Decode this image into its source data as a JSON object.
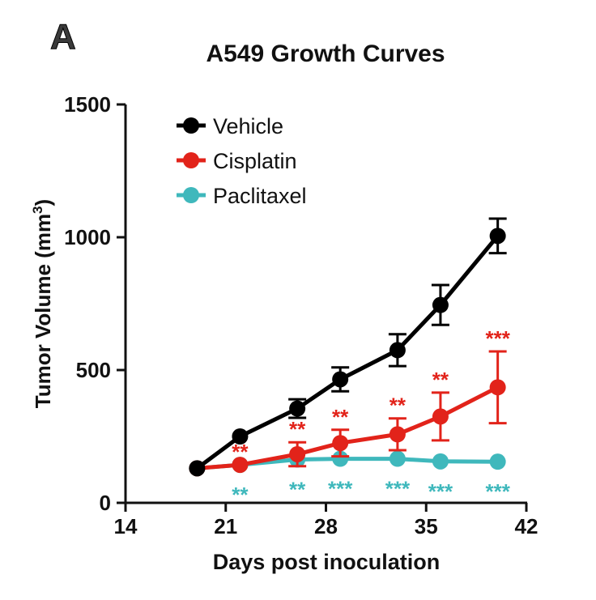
{
  "panel_label": "A",
  "chart_data": {
    "type": "line",
    "title": "A549 Growth Curves",
    "xlabel": "Days post inoculation",
    "ylabel_main": "Tumor Volume (mm",
    "ylabel_sup": "3",
    "ylabel_close": ")",
    "xlim": [
      14,
      42
    ],
    "ylim": [
      0,
      1500
    ],
    "xticks": [
      14,
      21,
      28,
      35,
      42
    ],
    "yticks": [
      0,
      500,
      1000,
      1500
    ],
    "legend_position": "top-left",
    "series": [
      {
        "name": "Vehicle",
        "color": "#000000",
        "x": [
          19,
          22,
          26,
          29,
          33,
          36,
          40
        ],
        "y": [
          130,
          250,
          355,
          465,
          575,
          745,
          1005
        ],
        "err": [
          0,
          0,
          35,
          45,
          60,
          75,
          65
        ],
        "sig": [
          "",
          "",
          "",
          "",
          "",
          "",
          ""
        ]
      },
      {
        "name": "Cisplatin",
        "color": "#e2231a",
        "x": [
          19,
          22,
          26,
          29,
          33,
          36,
          40
        ],
        "y": [
          130,
          143,
          183,
          225,
          258,
          325,
          435
        ],
        "err": [
          0,
          0,
          45,
          50,
          60,
          90,
          135
        ],
        "sig": [
          "",
          "**",
          "**",
          "**",
          "**",
          "**",
          "***"
        ]
      },
      {
        "name": "Paclitaxel",
        "color": "#3fb8bc",
        "x": [
          19,
          22,
          26,
          29,
          33,
          36,
          40
        ],
        "y": [
          130,
          143,
          163,
          166,
          166,
          156,
          155
        ],
        "err": [
          0,
          0,
          0,
          0,
          0,
          0,
          0
        ],
        "sig": [
          "",
          "**",
          "**",
          "***",
          "***",
          "***",
          "***"
        ]
      }
    ]
  }
}
